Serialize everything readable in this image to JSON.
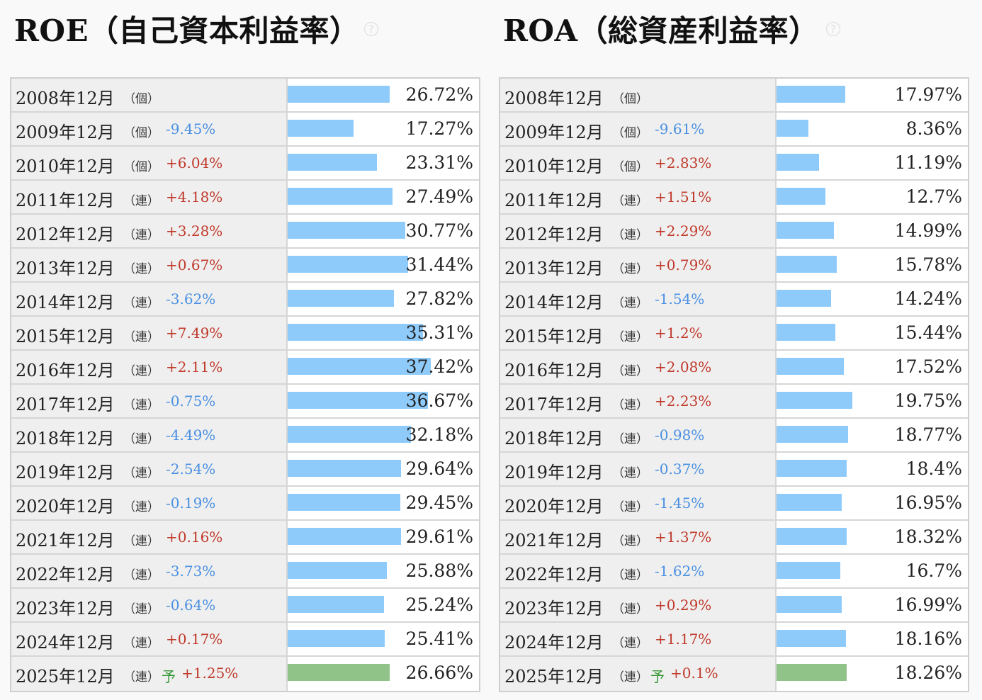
{
  "panels": [
    {
      "title": "ROE（自己資本利益率）",
      "chart_data": {
        "type": "bar",
        "categories": [
          "2008年12月",
          "2009年12月",
          "2010年12月",
          "2011年12月",
          "2012年12月",
          "2013年12月",
          "2014年12月",
          "2015年12月",
          "2016年12月",
          "2017年12月",
          "2018年12月",
          "2019年12月",
          "2020年12月",
          "2021年12月",
          "2022年12月",
          "2023年12月",
          "2024年12月",
          "2025年12月"
        ],
        "types": [
          "（個）",
          "（個）",
          "（個）",
          "（連）",
          "（連）",
          "（連）",
          "（連）",
          "（連）",
          "（連）",
          "（連）",
          "（連）",
          "（連）",
          "（連）",
          "（連）",
          "（連）",
          "（連）",
          "（連）",
          "（連）"
        ],
        "changes": [
          "",
          "-9.45%",
          "+6.04%",
          "+4.18%",
          "+3.28%",
          "+0.67%",
          "-3.62%",
          "+7.49%",
          "+2.11%",
          "-0.75%",
          "-4.49%",
          "-2.54%",
          "-0.19%",
          "+0.16%",
          "-3.73%",
          "-0.64%",
          "+0.17%",
          "+1.25%"
        ],
        "values": [
          26.72,
          17.27,
          23.31,
          27.49,
          30.77,
          31.44,
          27.82,
          35.31,
          37.42,
          36.67,
          32.18,
          29.64,
          29.45,
          29.61,
          25.88,
          25.24,
          25.41,
          26.66
        ],
        "value_labels": [
          "26.72%",
          "17.27%",
          "23.31%",
          "27.49%",
          "30.77%",
          "31.44%",
          "27.82%",
          "35.31%",
          "37.42%",
          "36.67%",
          "32.18%",
          "29.64%",
          "29.45%",
          "29.61%",
          "25.88%",
          "25.24%",
          "25.41%",
          "26.66%"
        ],
        "forecast_index": 17,
        "forecast_label": "予",
        "xlim": [
          0,
          50
        ]
      }
    },
    {
      "title": "ROA（総資産利益率）",
      "chart_data": {
        "type": "bar",
        "categories": [
          "2008年12月",
          "2009年12月",
          "2010年12月",
          "2011年12月",
          "2012年12月",
          "2013年12月",
          "2014年12月",
          "2015年12月",
          "2016年12月",
          "2017年12月",
          "2018年12月",
          "2019年12月",
          "2020年12月",
          "2021年12月",
          "2022年12月",
          "2023年12月",
          "2024年12月",
          "2025年12月"
        ],
        "types": [
          "（個）",
          "（個）",
          "（個）",
          "（連）",
          "（連）",
          "（連）",
          "（連）",
          "（連）",
          "（連）",
          "（連）",
          "（連）",
          "（連）",
          "（連）",
          "（連）",
          "（連）",
          "（連）",
          "（連）",
          "（連）"
        ],
        "changes": [
          "",
          "-9.61%",
          "+2.83%",
          "+1.51%",
          "+2.29%",
          "+0.79%",
          "-1.54%",
          "+1.2%",
          "+2.08%",
          "+2.23%",
          "-0.98%",
          "-0.37%",
          "-1.45%",
          "+1.37%",
          "-1.62%",
          "+0.29%",
          "+1.17%",
          "+0.1%"
        ],
        "values": [
          17.97,
          8.36,
          11.19,
          12.7,
          14.99,
          15.78,
          14.24,
          15.44,
          17.52,
          19.75,
          18.77,
          18.4,
          16.95,
          18.32,
          16.7,
          16.99,
          18.16,
          18.26
        ],
        "value_labels": [
          "17.97%",
          "8.36%",
          "11.19%",
          "12.7%",
          "14.99%",
          "15.78%",
          "14.24%",
          "15.44%",
          "17.52%",
          "19.75%",
          "18.77%",
          "18.4%",
          "16.95%",
          "18.32%",
          "16.7%",
          "16.99%",
          "18.16%",
          "18.26%"
        ],
        "forecast_index": 17,
        "forecast_label": "予",
        "xlim": [
          0,
          50
        ]
      }
    }
  ],
  "colors": {
    "bar": "#8ecbfb",
    "forecast_bar": "#8fc388",
    "positive": "#c0392b",
    "negative": "#4a90e2",
    "forecast_text": "#3c9a3c"
  },
  "help_icon": "question-circle-icon",
  "help_symbol": "?"
}
